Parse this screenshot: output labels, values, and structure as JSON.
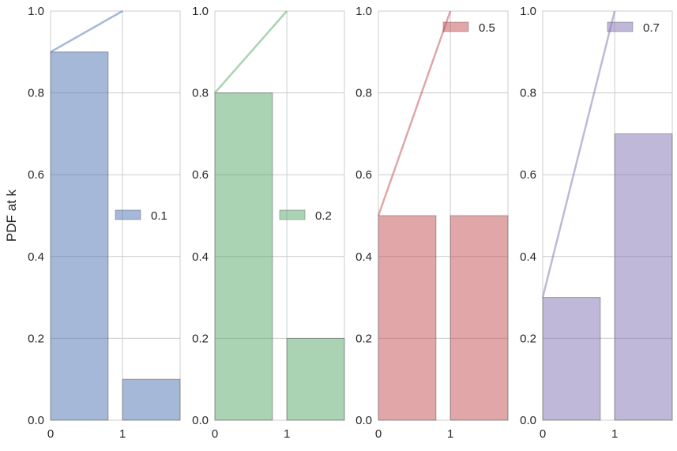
{
  "chart_data": [
    {
      "type": "bar",
      "p": 0.1,
      "x": [
        0,
        1
      ],
      "values": [
        0.9,
        0.1
      ],
      "line": {
        "x": [
          0,
          1
        ],
        "y": [
          0.9,
          1.0
        ]
      },
      "legend": "0.1",
      "legend_loc": "center right",
      "color": "#4C72B0",
      "ylabel": "PDF at k",
      "xticks": [
        "0",
        "1"
      ],
      "yticks": [
        "0.0",
        "0.2",
        "0.4",
        "0.6",
        "0.8",
        "1.0"
      ],
      "xlim": [
        0,
        1.8
      ],
      "ylim": [
        0,
        1
      ]
    },
    {
      "type": "bar",
      "p": 0.2,
      "x": [
        0,
        1
      ],
      "values": [
        0.8,
        0.2
      ],
      "line": {
        "x": [
          0,
          1
        ],
        "y": [
          0.8,
          1.0
        ]
      },
      "legend": "0.2",
      "legend_loc": "center right",
      "color": "#55A868",
      "ylabel": "",
      "xticks": [
        "0",
        "1"
      ],
      "yticks": [
        "0.0",
        "0.2",
        "0.4",
        "0.6",
        "0.8",
        "1.0"
      ],
      "xlim": [
        0,
        1.8
      ],
      "ylim": [
        0,
        1
      ]
    },
    {
      "type": "bar",
      "p": 0.5,
      "x": [
        0,
        1
      ],
      "values": [
        0.5,
        0.5
      ],
      "line": {
        "x": [
          0,
          1
        ],
        "y": [
          0.5,
          1.0
        ]
      },
      "legend": "0.5",
      "legend_loc": "upper right",
      "color": "#C44E52",
      "ylabel": "",
      "xticks": [
        "0",
        "1"
      ],
      "yticks": [
        "0.0",
        "0.2",
        "0.4",
        "0.6",
        "0.8",
        "1.0"
      ],
      "xlim": [
        0,
        1.8
      ],
      "ylim": [
        0,
        1
      ]
    },
    {
      "type": "bar",
      "p": 0.7,
      "x": [
        0,
        1
      ],
      "values": [
        0.3,
        0.7
      ],
      "line": {
        "x": [
          0,
          1
        ],
        "y": [
          0.3,
          1.0
        ]
      },
      "legend": "0.7",
      "legend_loc": "upper right",
      "color": "#8172B2",
      "ylabel": "",
      "xticks": [
        "0",
        "1"
      ],
      "yticks": [
        "0.0",
        "0.2",
        "0.4",
        "0.6",
        "0.8",
        "1.0"
      ],
      "xlim": [
        0,
        1.8
      ],
      "ylim": [
        0,
        1
      ]
    }
  ]
}
